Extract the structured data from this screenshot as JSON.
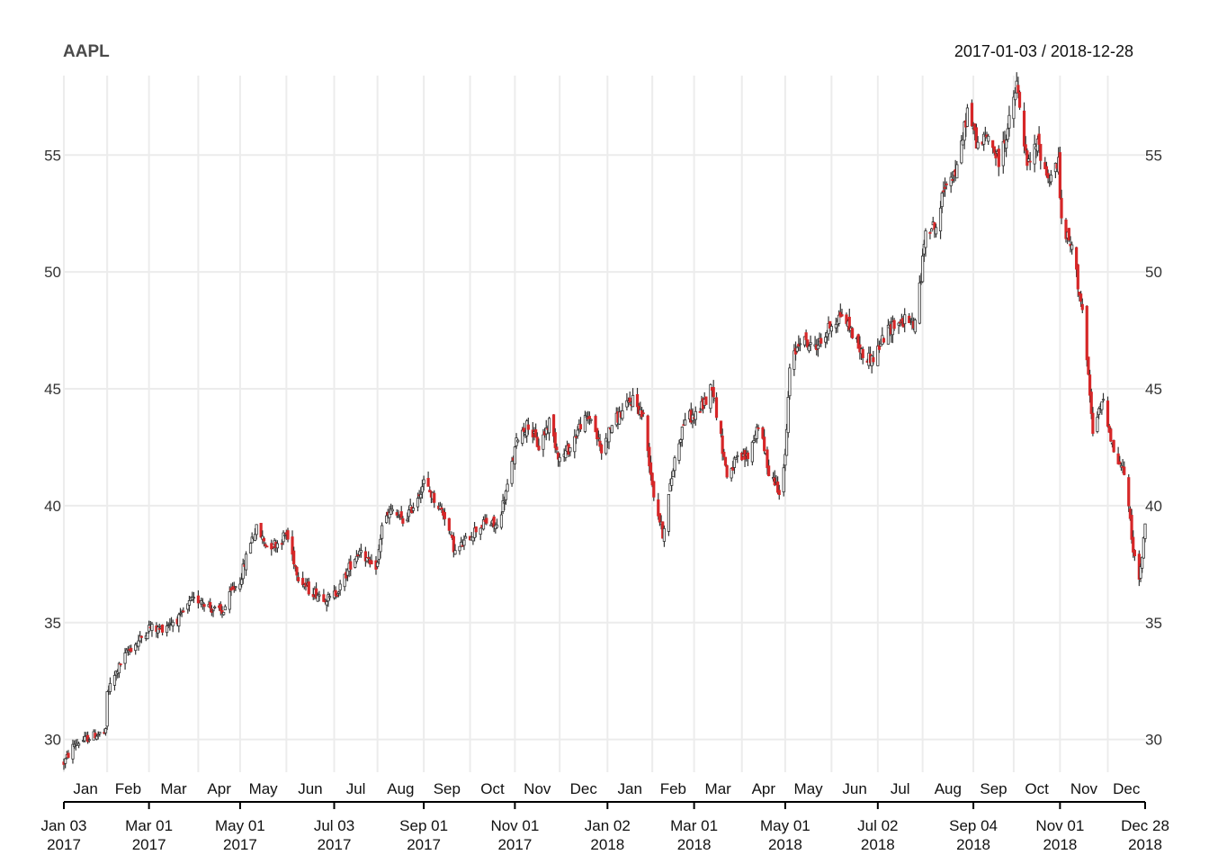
{
  "chart_data": {
    "type": "candlestick",
    "title": "AAPL",
    "date_range": "2017-01-03 / 2018-12-28",
    "ylim": [
      28.6,
      58.4
    ],
    "yticks": [
      30,
      35,
      40,
      45,
      50,
      55
    ],
    "ytick_labels": [
      "30",
      "35",
      "40",
      "45",
      "50",
      "55"
    ],
    "grid": true,
    "colors": {
      "up": "#ffffff",
      "down": "#d62728",
      "wick": "#333333",
      "body_edge": "#333333",
      "grid": "#ececec"
    },
    "month_ticks": [
      {
        "date": "2017-01-03",
        "label": "Jan"
      },
      {
        "date": "2017-02-01",
        "label": "Feb"
      },
      {
        "date": "2017-03-01",
        "label": "Mar"
      },
      {
        "date": "2017-04-03",
        "label": "Apr"
      },
      {
        "date": "2017-05-01",
        "label": "May"
      },
      {
        "date": "2017-06-01",
        "label": "Jun"
      },
      {
        "date": "2017-07-03",
        "label": "Jul"
      },
      {
        "date": "2017-08-01",
        "label": "Aug"
      },
      {
        "date": "2017-09-01",
        "label": "Sep"
      },
      {
        "date": "2017-10-02",
        "label": "Oct"
      },
      {
        "date": "2017-11-01",
        "label": "Nov"
      },
      {
        "date": "2017-12-01",
        "label": "Dec"
      },
      {
        "date": "2018-01-02",
        "label": "Jan"
      },
      {
        "date": "2018-02-01",
        "label": "Feb"
      },
      {
        "date": "2018-03-01",
        "label": "Mar"
      },
      {
        "date": "2018-04-02",
        "label": "Apr"
      },
      {
        "date": "2018-05-01",
        "label": "May"
      },
      {
        "date": "2018-06-01",
        "label": "Jun"
      },
      {
        "date": "2018-07-02",
        "label": "Jul"
      },
      {
        "date": "2018-08-01",
        "label": "Aug"
      },
      {
        "date": "2018-09-04",
        "label": "Sep"
      },
      {
        "date": "2018-10-01",
        "label": "Oct"
      },
      {
        "date": "2018-11-01",
        "label": "Nov"
      },
      {
        "date": "2018-12-03",
        "label": "Dec"
      }
    ],
    "major_ticks": [
      {
        "date": "2017-01-03",
        "label": "Jan 03",
        "year": "2017"
      },
      {
        "date": "2017-03-01",
        "label": "Mar 01",
        "year": "2017"
      },
      {
        "date": "2017-05-01",
        "label": "May 01",
        "year": "2017"
      },
      {
        "date": "2017-07-03",
        "label": "Jul 03",
        "year": "2017"
      },
      {
        "date": "2017-09-01",
        "label": "Sep 01",
        "year": "2017"
      },
      {
        "date": "2017-11-01",
        "label": "Nov 01",
        "year": "2017"
      },
      {
        "date": "2018-01-02",
        "label": "Jan 02",
        "year": "2018"
      },
      {
        "date": "2018-03-01",
        "label": "Mar 01",
        "year": "2018"
      },
      {
        "date": "2018-05-01",
        "label": "May 01",
        "year": "2018"
      },
      {
        "date": "2018-07-02",
        "label": "Jul 02",
        "year": "2018"
      },
      {
        "date": "2018-09-04",
        "label": "Sep 04",
        "year": "2018"
      },
      {
        "date": "2018-11-01",
        "label": "Nov 01",
        "year": "2018"
      },
      {
        "date": "2018-12-28",
        "label": "Dec 28",
        "year": "2018"
      }
    ],
    "approx_close_by_date": [
      [
        "2017-01-03",
        29.0
      ],
      [
        "2017-01-10",
        29.8
      ],
      [
        "2017-01-17",
        30.0
      ],
      [
        "2017-01-24",
        30.2
      ],
      [
        "2017-01-31",
        30.3
      ],
      [
        "2017-02-01",
        32.0
      ],
      [
        "2017-02-08",
        33.0
      ],
      [
        "2017-02-15",
        33.8
      ],
      [
        "2017-02-22",
        34.2
      ],
      [
        "2017-03-01",
        34.8
      ],
      [
        "2017-03-08",
        34.7
      ],
      [
        "2017-03-15",
        35.0
      ],
      [
        "2017-03-22",
        35.2
      ],
      [
        "2017-03-29",
        35.9
      ],
      [
        "2017-04-05",
        36.0
      ],
      [
        "2017-04-12",
        35.6
      ],
      [
        "2017-04-19",
        35.4
      ],
      [
        "2017-04-26",
        36.4
      ],
      [
        "2017-05-01",
        36.8
      ],
      [
        "2017-05-08",
        38.5
      ],
      [
        "2017-05-12",
        39.0
      ],
      [
        "2017-05-19",
        38.3
      ],
      [
        "2017-05-26",
        38.4
      ],
      [
        "2017-06-01",
        38.8
      ],
      [
        "2017-06-09",
        37.0
      ],
      [
        "2017-06-16",
        36.4
      ],
      [
        "2017-06-23",
        36.2
      ],
      [
        "2017-06-30",
        36.0
      ],
      [
        "2017-07-07",
        36.5
      ],
      [
        "2017-07-14",
        37.5
      ],
      [
        "2017-07-21",
        38.2
      ],
      [
        "2017-07-28",
        37.3
      ],
      [
        "2017-08-01",
        37.5
      ],
      [
        "2017-08-04",
        39.2
      ],
      [
        "2017-08-11",
        39.8
      ],
      [
        "2017-08-18",
        39.3
      ],
      [
        "2017-08-25",
        40.0
      ],
      [
        "2017-09-01",
        41.0
      ],
      [
        "2017-09-08",
        40.3
      ],
      [
        "2017-09-15",
        39.6
      ],
      [
        "2017-09-22",
        38.0
      ],
      [
        "2017-09-29",
        38.5
      ],
      [
        "2017-10-06",
        39.0
      ],
      [
        "2017-10-13",
        39.3
      ],
      [
        "2017-10-20",
        39.1
      ],
      [
        "2017-10-27",
        40.8
      ],
      [
        "2017-11-03",
        43.0
      ],
      [
        "2017-11-10",
        43.5
      ],
      [
        "2017-11-17",
        42.5
      ],
      [
        "2017-11-24",
        43.6
      ],
      [
        "2017-12-01",
        42.0
      ],
      [
        "2017-12-08",
        42.5
      ],
      [
        "2017-12-15",
        43.5
      ],
      [
        "2017-12-22",
        43.8
      ],
      [
        "2017-12-29",
        42.3
      ],
      [
        "2018-01-05",
        43.5
      ],
      [
        "2018-01-12",
        44.0
      ],
      [
        "2018-01-19",
        44.6
      ],
      [
        "2018-01-26",
        43.8
      ],
      [
        "2018-02-02",
        40.5
      ],
      [
        "2018-02-08",
        38.8
      ],
      [
        "2018-02-16",
        42.0
      ],
      [
        "2018-02-23",
        43.8
      ],
      [
        "2018-03-01",
        43.8
      ],
      [
        "2018-03-09",
        44.5
      ],
      [
        "2018-03-13",
        45.2
      ],
      [
        "2018-03-23",
        41.3
      ],
      [
        "2018-03-29",
        41.9
      ],
      [
        "2018-04-06",
        42.1
      ],
      [
        "2018-04-13",
        43.5
      ],
      [
        "2018-04-20",
        41.5
      ],
      [
        "2018-04-27",
        40.7
      ],
      [
        "2018-05-01",
        42.0
      ],
      [
        "2018-05-04",
        45.8
      ],
      [
        "2018-05-11",
        47.2
      ],
      [
        "2018-05-18",
        46.8
      ],
      [
        "2018-05-25",
        47.0
      ],
      [
        "2018-06-01",
        47.8
      ],
      [
        "2018-06-08",
        48.2
      ],
      [
        "2018-06-15",
        47.4
      ],
      [
        "2018-06-22",
        46.4
      ],
      [
        "2018-06-29",
        46.3
      ],
      [
        "2018-07-06",
        47.2
      ],
      [
        "2018-07-13",
        47.8
      ],
      [
        "2018-07-20",
        47.9
      ],
      [
        "2018-07-27",
        47.8
      ],
      [
        "2018-08-01",
        50.4
      ],
      [
        "2018-08-03",
        52.0
      ],
      [
        "2018-08-10",
        51.9
      ],
      [
        "2018-08-17",
        54.0
      ],
      [
        "2018-08-24",
        54.3
      ],
      [
        "2018-08-31",
        56.9
      ],
      [
        "2018-09-07",
        55.4
      ],
      [
        "2018-09-14",
        55.8
      ],
      [
        "2018-09-21",
        54.7
      ],
      [
        "2018-09-28",
        56.4
      ],
      [
        "2018-10-03",
        58.0
      ],
      [
        "2018-10-10",
        54.5
      ],
      [
        "2018-10-17",
        55.5
      ],
      [
        "2018-10-24",
        54.0
      ],
      [
        "2018-10-31",
        54.7
      ],
      [
        "2018-11-02",
        52.0
      ],
      [
        "2018-11-09",
        51.0
      ],
      [
        "2018-11-16",
        48.4
      ],
      [
        "2018-11-23",
        43.1
      ],
      [
        "2018-11-30",
        44.6
      ],
      [
        "2018-12-07",
        42.3
      ],
      [
        "2018-12-14",
        41.4
      ],
      [
        "2018-12-21",
        37.7
      ],
      [
        "2018-12-24",
        36.7
      ],
      [
        "2018-12-28",
        39.1
      ]
    ]
  }
}
